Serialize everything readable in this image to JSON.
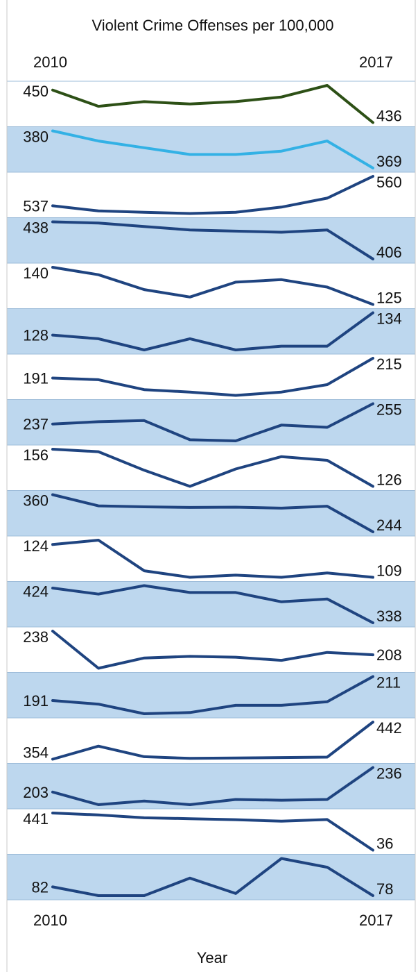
{
  "chart_data": {
    "type": "line",
    "title": "Violent Crime Offenses per 100,000",
    "xlabel": "Year",
    "x": [
      2010,
      2011,
      2012,
      2013,
      2014,
      2015,
      2016,
      2017
    ],
    "start_year_label": "2010",
    "end_year_label": "2017",
    "grid": false,
    "colors": {
      "first_series": "#2d5016",
      "second_series": "#33b1e5",
      "other_series": "#1f4480",
      "band_fill": "#bdd7ee",
      "band_border": "#9dbcd9",
      "frame": "#c8c8c8"
    },
    "series": [
      {
        "values": [
          450,
          443,
          445,
          444,
          445,
          447,
          452,
          436
        ],
        "start_label": "450",
        "end_label": "436"
      },
      {
        "values": [
          380,
          377,
          375,
          373,
          373,
          374,
          377,
          369
        ],
        "start_label": "380",
        "end_label": "369"
      },
      {
        "values": [
          537,
          533,
          532,
          531,
          532,
          536,
          543,
          560
        ],
        "start_label": "537",
        "end_label": "560"
      },
      {
        "values": [
          438,
          437,
          434,
          431,
          430,
          429,
          431,
          406
        ],
        "start_label": "438",
        "end_label": "406"
      },
      {
        "values": [
          140,
          137,
          131,
          128,
          134,
          135,
          132,
          125
        ],
        "start_label": "140",
        "end_label": "125"
      },
      {
        "values": [
          128,
          127,
          124,
          127,
          124,
          125,
          125,
          134
        ],
        "start_label": "128",
        "end_label": "134"
      },
      {
        "values": [
          191,
          189,
          177,
          174,
          170,
          174,
          183,
          215
        ],
        "start_label": "191",
        "end_label": "215"
      },
      {
        "values": [
          237,
          239,
          240,
          223,
          222,
          236,
          234,
          255
        ],
        "start_label": "237",
        "end_label": "255"
      },
      {
        "values": [
          156,
          154,
          139,
          126,
          140,
          150,
          147,
          126
        ],
        "start_label": "156",
        "end_label": "126"
      },
      {
        "values": [
          360,
          325,
          322,
          320,
          321,
          318,
          324,
          244
        ],
        "start_label": "360",
        "end_label": "244"
      },
      {
        "values": [
          124,
          126,
          112,
          109,
          110,
          109,
          111,
          109
        ],
        "start_label": "124",
        "end_label": "109"
      },
      {
        "values": [
          424,
          409,
          430,
          413,
          413,
          390,
          397,
          338
        ],
        "start_label": "424",
        "end_label": "338"
      },
      {
        "values": [
          238,
          191,
          204,
          206,
          205,
          201,
          211,
          208
        ],
        "start_label": "238",
        "end_label": "208"
      },
      {
        "values": [
          191,
          188,
          180,
          181,
          187,
          187,
          190,
          211
        ],
        "start_label": "191",
        "end_label": "211"
      },
      {
        "values": [
          354,
          385,
          360,
          356,
          357,
          358,
          359,
          442
        ],
        "start_label": "354",
        "end_label": "442"
      },
      {
        "values": [
          203,
          186,
          191,
          186,
          193,
          192,
          193,
          236
        ],
        "start_label": "203",
        "end_label": "236"
      },
      {
        "values": [
          441,
          420,
          389,
          379,
          368,
          352,
          370,
          36
        ],
        "start_label": "441",
        "end_label": "36"
      },
      {
        "values": [
          82,
          78,
          78,
          86,
          79,
          95,
          91,
          78
        ],
        "start_label": "82",
        "end_label": "78"
      }
    ]
  }
}
